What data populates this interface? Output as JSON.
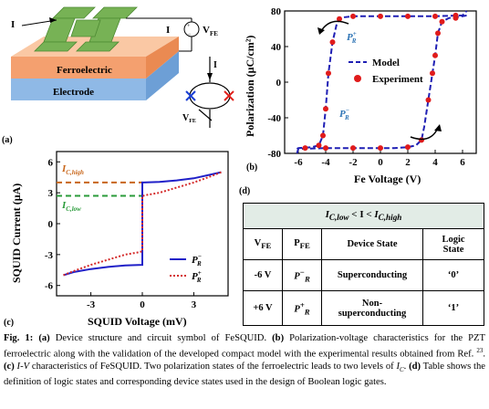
{
  "panel_a": {
    "label": "(a)",
    "current_label": "I",
    "current_label_right": "I",
    "vfe_label": "V",
    "vfe_sub": "FE",
    "layer_ferro": "Ferroelectric",
    "layer_electrode": "Electrode",
    "symbol_current": "I",
    "symbol_vfe": "V",
    "symbol_vfe_sub": "FE",
    "colors": {
      "ferro_top": "#f6b68b",
      "ferro_bottom": "#f4a06f",
      "electrode": "#8fb9e6",
      "squid": "#77b255",
      "cross_left": "#1a3fd4",
      "cross_right": "#e0201b"
    }
  },
  "chart_data": [
    {
      "panel": "(b)",
      "type": "line",
      "xlabel": "Fe Voltage (V)",
      "ylabel": "Polarization (μC/cm²)",
      "xlim": [
        -7,
        7
      ],
      "ylim": [
        -80,
        80
      ],
      "xticks": [
        "-6",
        "-4",
        "-2",
        "0",
        "2",
        "4",
        "6"
      ],
      "yticks": [
        "-80",
        "-40",
        "0",
        "40",
        "80"
      ],
      "legend": [
        "Model",
        "Experiment"
      ],
      "annotations": [
        "P_R^+",
        "P_R^-"
      ],
      "series": [
        {
          "name": "Model",
          "style": "dashed",
          "color": "#1f1fb4",
          "x": [
            -6.1,
            -6,
            -5,
            -4.5,
            -4.2,
            -4,
            -3.8,
            -3.5,
            -3.2,
            -3,
            -2.6,
            -2,
            -1,
            0,
            2,
            4,
            6,
            6.3
          ],
          "y": [
            -75,
            -74,
            -73,
            -71,
            -60,
            -30,
            10,
            45,
            65,
            71,
            73,
            74,
            74,
            74,
            74,
            74,
            75,
            80
          ]
        },
        {
          "name": "Model",
          "style": "dashed",
          "color": "#1f1fb4",
          "x": [
            -6.1,
            -6,
            -4,
            -2,
            0,
            1,
            2,
            2.6,
            3,
            3.2,
            3.5,
            3.8,
            4,
            4.2,
            4.5,
            5,
            6,
            6.3
          ],
          "y": [
            -80,
            -75,
            -74,
            -74,
            -74,
            -74,
            -73,
            -71,
            -65,
            -50,
            -20,
            10,
            30,
            55,
            68,
            72,
            74,
            75
          ]
        },
        {
          "name": "Experiment",
          "style": "points",
          "color": "#e01b1b",
          "x": [
            -5.5,
            -4.5,
            -4.2,
            -4,
            -3.8,
            -3.5,
            -3,
            -2,
            0,
            2,
            4,
            5.5,
            5.5,
            4.5,
            4.2,
            4,
            3.8,
            3.5,
            3,
            2,
            0,
            -2,
            -4
          ],
          "y": [
            -74,
            -71,
            -60,
            -30,
            10,
            45,
            71,
            74,
            74,
            74,
            74,
            75,
            72,
            68,
            55,
            30,
            10,
            -20,
            -65,
            -73,
            -74,
            -74,
            -74
          ]
        }
      ]
    },
    {
      "panel": "(c)",
      "type": "line",
      "xlabel": "SQUID Voltage (mV)",
      "ylabel": "SQUID Current (μA)",
      "xlim": [
        -5,
        5
      ],
      "ylim": [
        -7,
        7
      ],
      "xticks": [
        "-3",
        "0",
        "3"
      ],
      "yticks": [
        "-6",
        "-3",
        "0",
        "3",
        "6"
      ],
      "ref_lines": [
        {
          "name": "I_C,high",
          "y": 4,
          "color": "#c8661a"
        },
        {
          "name": "I_C,low",
          "y": 2.7,
          "color": "#2a9b3a"
        }
      ],
      "series": [
        {
          "name": "P_R^-",
          "style": "solid",
          "color": "#2020c8",
          "x": [
            -4.6,
            -4,
            -3,
            -2,
            -1,
            -0.05,
            0,
            0,
            0.05,
            1,
            2,
            3,
            4.6
          ],
          "y": [
            -5,
            -4.7,
            -4.4,
            -4.2,
            -4.05,
            -4,
            -4,
            4,
            4,
            4.05,
            4.2,
            4.4,
            5
          ]
        },
        {
          "name": "P_R^+",
          "style": "dotted",
          "color": "#d42a2a",
          "x": [
            -4.6,
            -4,
            -3,
            -2,
            -1,
            -0.3,
            -0.05,
            0,
            0,
            0.05,
            0.3,
            1,
            2,
            3,
            4,
            4.6
          ],
          "y": [
            -5,
            -4.6,
            -4,
            -3.5,
            -3,
            -2.8,
            -2.7,
            -2.7,
            2.7,
            2.7,
            2.8,
            3,
            3.5,
            4,
            4.6,
            5
          ]
        }
      ]
    }
  ],
  "panel_b": {
    "label": "(b)",
    "annot_plus": "P",
    "annot_minus": "P",
    "annot_sub": "R",
    "annot_sup_plus": "+",
    "annot_sup_minus": "−"
  },
  "panel_c": {
    "label": "(c)",
    "ic_high": "I",
    "ic_high_sub": "C,high",
    "ic_low": "I",
    "ic_low_sub": "C,low",
    "legend_minus": "P",
    "legend_plus": "P",
    "legend_sub": "R",
    "legend_sup_minus": "−",
    "legend_sup_plus": "+"
  },
  "panel_d": {
    "label": "(d)",
    "header_pre": "I",
    "header_pre_sub": "C,low",
    "header_mid": " < I < ",
    "header_post": "I",
    "header_post_sub": "C,high",
    "col_vfe": "V",
    "col_vfe_sub": "FE",
    "col_pfe": "P",
    "col_pfe_sub": "FE",
    "col_state": "Device State",
    "col_logic_1": "Logic",
    "col_logic_2": "State",
    "row1_v": "-6 V",
    "row1_p": "P",
    "row1_p_sup": "−",
    "row1_p_sub": "R",
    "row1_state": "Superconducting",
    "row1_logic": "‘0’",
    "row2_v": "+6 V",
    "row2_p": "P",
    "row2_p_sup": "+",
    "row2_p_sub": "R",
    "row2_state_1": "Non-",
    "row2_state_2": "superconducting",
    "row2_logic": "‘1’",
    "header_bg": "#e2ece6"
  },
  "caption": {
    "fig": "Fig. 1:",
    "a": "(a)",
    "t1": " Device structure and circuit symbol of FeSQUID. ",
    "b": "(b)",
    "t2": " Polarization-voltage characteristics for the PZT ferroelectric along with the validation of the developed compact model with the experimental results obtained from Ref. ",
    "ref": "23",
    "t3": ". ",
    "c": "(c)",
    "iv": " I-V",
    "t4": " characteristics of FeSQUID. Two polarization states of the ferroelectric leads to two levels of ",
    "ic": "I",
    "ic_sub": "C",
    "t5": ". ",
    "d": "(d)",
    "t6": " Table shows the definition of logic states and corresponding device states used in the design of Boolean logic gates."
  }
}
